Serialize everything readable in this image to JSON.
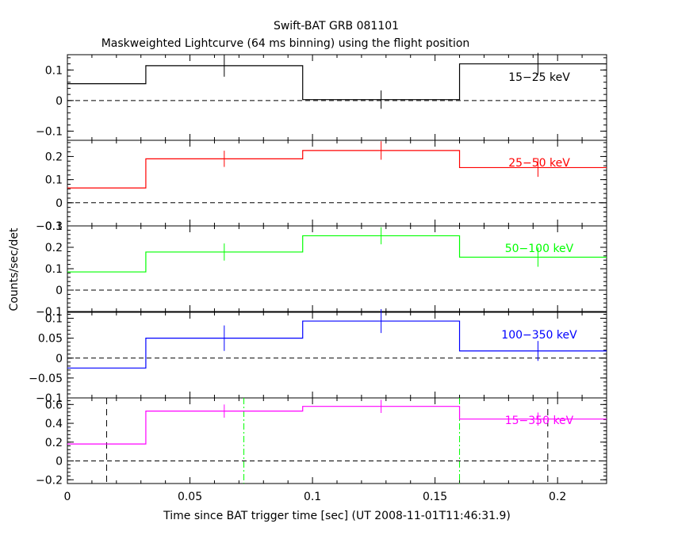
{
  "chart_data": {
    "type": "line",
    "title": "Swift-BAT GRB 081101",
    "subtitle": "Maskweighted Lightcurve (64 ms binning) using the flight position",
    "xlabel": "Time since BAT trigger time [sec] (UT 2008-11-01T11:46:31.9)",
    "ylabel": "Counts/sec/det",
    "xlim": [
      0,
      0.22
    ],
    "xticks": [
      0,
      0.05,
      0.1,
      0.15,
      0.2
    ],
    "xtick_labels": [
      "0",
      "0.05",
      "0.1",
      "0.15",
      "0.2"
    ],
    "bin_edges": [
      0.0,
      0.032,
      0.096,
      0.16,
      0.22
    ],
    "panels": [
      {
        "name": "15-25 keV",
        "label": "15−25 keV",
        "color": "#000000",
        "ylim": [
          -0.13,
          0.15
        ],
        "yticks": [
          -0.1,
          0,
          0.1
        ],
        "ytick_labels": [
          "−0.1",
          "0",
          "0.1"
        ],
        "values": [
          0.055,
          0.114,
          0.003,
          0.12
        ],
        "err_x": [
          0.064,
          0.128,
          0.192
        ],
        "err_y": [
          0.114,
          0.003,
          0.12
        ],
        "err_h": [
          0.036,
          0.03,
          0.036
        ]
      },
      {
        "name": "25-50 keV",
        "label": "25−50 keV",
        "color": "#ff0000",
        "ylim": [
          -0.1,
          0.27
        ],
        "yticks": [
          -0.1,
          0,
          0.1,
          0.2
        ],
        "ytick_labels": [
          "−0.1",
          "0",
          "0.1",
          "0.2"
        ],
        "values": [
          0.064,
          0.19,
          0.226,
          0.152
        ],
        "err_x": [
          0.064,
          0.128,
          0.192
        ],
        "err_y": [
          0.19,
          0.226,
          0.152
        ],
        "err_h": [
          0.035,
          0.04,
          0.04
        ]
      },
      {
        "name": "50-100 keV",
        "label": "50−100 keV",
        "color": "#00ff00",
        "ylim": [
          -0.1,
          0.3
        ],
        "yticks": [
          -0.1,
          0,
          0.1,
          0.2,
          0.3
        ],
        "ytick_labels": [
          "−0.1",
          "0",
          "0.1",
          "0.2",
          "0.3"
        ],
        "values": [
          0.085,
          0.178,
          0.254,
          0.154
        ],
        "err_x": [
          0.064,
          0.128,
          0.192
        ],
        "err_y": [
          0.178,
          0.254,
          0.154
        ],
        "err_h": [
          0.04,
          0.04,
          0.045
        ]
      },
      {
        "name": "100-350 keV",
        "label": "100−350 keV",
        "color": "#0000ff",
        "ylim": [
          -0.1,
          0.115
        ],
        "yticks": [
          -0.1,
          -0.05,
          0,
          0.05,
          0.1
        ],
        "ytick_labels": [
          "−0.1",
          "−0.05",
          "0",
          "0.05",
          "0.1"
        ],
        "values": [
          -0.025,
          0.05,
          0.093,
          0.018
        ],
        "err_x": [
          0.064,
          0.128,
          0.192
        ],
        "err_y": [
          0.05,
          0.093,
          0.018
        ],
        "err_h": [
          0.032,
          0.03,
          0.025
        ]
      },
      {
        "name": "15-350 keV",
        "label": "15−350 keV",
        "color": "#ff00ff",
        "ylim": [
          -0.24,
          0.67
        ],
        "yticks": [
          -0.2,
          0,
          0.2,
          0.4,
          0.6
        ],
        "ytick_labels": [
          "−0.2",
          "0",
          "0.2",
          "0.4",
          "0.6"
        ],
        "values": [
          0.18,
          0.53,
          0.58,
          0.445
        ],
        "err_x": [
          0.064,
          0.128,
          0.192
        ],
        "err_y": [
          0.53,
          0.58,
          0.445
        ],
        "err_h": [
          0.07,
          0.07,
          0.07
        ],
        "vlines": [
          {
            "x": 0.016,
            "color": "#000000",
            "style": "dashed"
          },
          {
            "x": 0.072,
            "color": "#00ff00",
            "style": "dashdot"
          },
          {
            "x": 0.16,
            "color": "#00ff00",
            "style": "dashdot"
          },
          {
            "x": 0.196,
            "color": "#000000",
            "style": "dashed"
          }
        ]
      }
    ]
  }
}
